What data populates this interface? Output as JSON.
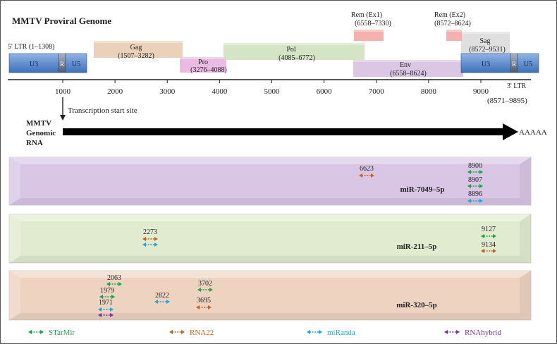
{
  "title": "MMTV Proviral Genome",
  "genome": {
    "ltr5_label": "5' LTR (1–1308)",
    "ltr3_label": "3' LTR",
    "ltr3_range": "(8571–9895)",
    "ltr5_segments": [
      "U3",
      "R",
      "U5"
    ],
    "ltr3_segments": [
      "U3",
      "R",
      "U5"
    ],
    "genes": [
      {
        "name": "Gag",
        "range": "(1507–3282)",
        "color": "#e9cdb3"
      },
      {
        "name": "Pro",
        "range": "(3276–4088)",
        "color": "#e8b4df"
      },
      {
        "name": "Pol",
        "range": "(4085–6772)",
        "color": "#cfe3c0"
      },
      {
        "name": "Env",
        "range": "(6558–8624)",
        "color": "#d8c1e2"
      },
      {
        "name": "Sag",
        "range": "(8572–9531)",
        "color": "#dcdcdc"
      },
      {
        "name": "Rem (Ex1)",
        "range": "(6558–7330)",
        "color": "#f4a9a9"
      },
      {
        "name": "Rem (Ex2)",
        "range": "(8572–8624)",
        "color": "#f4a9a9"
      }
    ],
    "axis": {
      "min": 0,
      "max": 9895,
      "ticks": [
        1000,
        2000,
        3000,
        4000,
        5000,
        6000,
        7000,
        8000,
        9000
      ]
    }
  },
  "transcription_start": "Transcription start site",
  "rna_label": [
    "MMTV",
    "Genomic",
    "RNA"
  ],
  "polya": "AAAAA",
  "panels": [
    {
      "name": "miR-7049–5p",
      "color": "#d8c6e4",
      "sites": [
        {
          "pos": 6623,
          "label": "6623",
          "tools": [
            "RNA22"
          ]
        },
        {
          "pos": 8900,
          "label": "8900",
          "tools": [
            "STarMir"
          ]
        },
        {
          "pos": 8907,
          "label": "8907",
          "tools": [
            "STarMir"
          ]
        },
        {
          "pos": 8896,
          "label": "8896",
          "tools": [
            "miRanda"
          ]
        }
      ]
    },
    {
      "name": "miR-211–5p",
      "color": "#e1ebd0",
      "sites": [
        {
          "pos": 2273,
          "label": "2273",
          "tools": [
            "RNA22",
            "miRanda"
          ]
        },
        {
          "pos": 9127,
          "label": "9127",
          "tools": [
            "STarMir"
          ]
        },
        {
          "pos": 9134,
          "label": "9134",
          "tools": [
            "RNA22"
          ]
        }
      ]
    },
    {
      "name": "miR-320–5p",
      "color": "#eed3c0",
      "sites": [
        {
          "pos": 2063,
          "label": "2063",
          "tools": [
            "STarMir"
          ]
        },
        {
          "pos": 1979,
          "label": "1979",
          "tools": [
            "STarMir"
          ]
        },
        {
          "pos": 1971,
          "label": "1971",
          "tools": [
            "miRanda",
            "RNAhybrid"
          ]
        },
        {
          "pos": 2822,
          "label": "2822",
          "tools": [
            "miRanda"
          ]
        },
        {
          "pos": 3702,
          "label": "3702",
          "tools": [
            "STarMir"
          ]
        },
        {
          "pos": 3695,
          "label": "3695",
          "tools": [
            "RNA22"
          ]
        }
      ]
    }
  ],
  "legend": [
    {
      "tool": "STarMir",
      "color": "#1aa64a"
    },
    {
      "tool": "RNA22",
      "color": "#c8641e"
    },
    {
      "tool": "miRanda",
      "color": "#1ba8e0"
    },
    {
      "tool": "RNAhybrid",
      "color": "#7a33a8"
    }
  ]
}
